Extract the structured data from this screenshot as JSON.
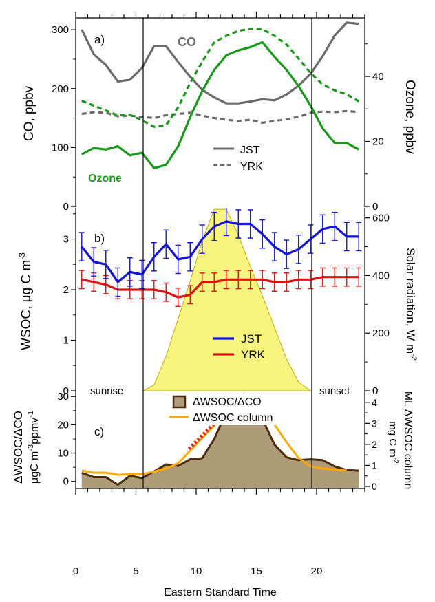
{
  "colors": {
    "green": "#169b16",
    "co_gray": "#6b6b6b",
    "yrk_gray": "#6b6b6b",
    "blue": "#1010e0",
    "red": "#e01010",
    "yellow_fill": "#f8f47e",
    "yellow_edge": "#b8b400",
    "brown_fill": "#ae9c78",
    "brown_line": "#4c2a06",
    "orange": "#ffaa00",
    "red_dash": "#e4201a"
  },
  "common": {
    "xlabel": "Eastern Standard Time",
    "xlim": [
      0,
      24
    ],
    "xticks": [
      "0",
      "5",
      "10",
      "15",
      "20"
    ],
    "sunrise_x": 5.6,
    "sunset_x": 19.6,
    "sunrise_label": "sunrise",
    "sunset_label": "sunset"
  },
  "chart_data": [
    {
      "type": "line",
      "panel_label": "a)",
      "ylabel": "CO, ppbv",
      "ylabel_right": "Ozone, ppbv",
      "ylim": [
        0,
        320
      ],
      "yticks": [
        "0",
        "100",
        "200",
        "300"
      ],
      "ylim_right": [
        0,
        58
      ],
      "yticks_right": [
        "0",
        "20",
        "40"
      ],
      "annotations": {
        "co": "CO",
        "ozone": "Ozone"
      },
      "legend": {
        "JST": "JST",
        "YRK": "YRK"
      },
      "x": [
        0.5,
        1.5,
        2.5,
        3.5,
        4.5,
        5.5,
        6.5,
        7.5,
        8.5,
        9.5,
        10.5,
        11.5,
        12.5,
        13.5,
        14.5,
        15.5,
        16.5,
        17.5,
        18.5,
        19.5,
        20.5,
        21.5,
        22.5,
        23.5
      ],
      "series": [
        {
          "name": "JST",
          "measure": "CO",
          "axis": "left",
          "values": [
            300,
            258,
            240,
            212,
            215,
            235,
            272,
            272,
            245,
            220,
            198,
            185,
            175,
            175,
            178,
            182,
            180,
            190,
            205,
            225,
            255,
            290,
            312,
            310
          ]
        },
        {
          "name": "YRK",
          "measure": "CO",
          "axis": "left",
          "values": [
            157,
            160,
            159,
            153,
            154,
            152,
            150,
            155,
            157,
            159,
            154,
            150,
            147,
            145,
            147,
            142,
            145,
            148,
            152,
            159,
            161,
            160,
            162,
            160
          ]
        },
        {
          "name": "JST",
          "measure": "Ozone",
          "axis": "right",
          "values": [
            16,
            18,
            17.5,
            18.5,
            15.7,
            16.5,
            11.8,
            12.8,
            18.5,
            27.5,
            35.5,
            42,
            46.5,
            48,
            49,
            50.5,
            46,
            42,
            37,
            31,
            24,
            19.5,
            19.5,
            17.5
          ]
        },
        {
          "name": "YRK",
          "measure": "Ozone",
          "axis": "right",
          "values": [
            32.5,
            31,
            29.5,
            28,
            28.2,
            26.5,
            24.5,
            25,
            30.5,
            38,
            44.5,
            50.5,
            52.5,
            54,
            54.7,
            54.5,
            52.5,
            49.8,
            45.5,
            41,
            37.5,
            35.7,
            34.5,
            32.3
          ]
        }
      ]
    },
    {
      "type": "line",
      "panel_label": "b)",
      "ylabel": "WSOC, μg C m",
      "ylabel_sup": "-3",
      "ylabel_right": "Solar radiation, W m",
      "ylabel_right_sup": "-2",
      "ylim": [
        0,
        3.62
      ],
      "yticks": [
        "0",
        "1",
        "2",
        "3"
      ],
      "ylim_right": [
        0,
        635
      ],
      "yticks_right": [
        "0",
        "200",
        "400",
        "600"
      ],
      "legend": {
        "JST": "JST",
        "YRK": "YRK"
      },
      "x": [
        0.5,
        1.5,
        2.5,
        3.5,
        4.5,
        5.5,
        6.5,
        7.5,
        8.5,
        9.5,
        10.5,
        11.5,
        12.5,
        13.5,
        14.5,
        15.5,
        16.5,
        17.5,
        18.5,
        19.5,
        20.5,
        21.5,
        22.5,
        23.5
      ],
      "series": [
        {
          "name": "JST",
          "values": [
            2.85,
            2.55,
            2.5,
            2.15,
            2.35,
            2.3,
            2.65,
            2.9,
            2.6,
            2.65,
            3.0,
            3.25,
            3.35,
            3.3,
            3.3,
            3.1,
            2.85,
            2.7,
            2.8,
            3.0,
            3.2,
            3.25,
            3.05,
            3.05
          ],
          "error": 0.28
        },
        {
          "name": "YRK",
          "values": [
            2.2,
            2.15,
            2.1,
            2.0,
            2.0,
            2.0,
            2.0,
            1.95,
            1.85,
            1.9,
            2.15,
            2.15,
            2.2,
            2.2,
            2.2,
            2.2,
            2.15,
            2.15,
            2.2,
            2.2,
            2.25,
            2.25,
            2.25,
            2.25
          ],
          "error": 0.18
        },
        {
          "name": "Solar radiation",
          "axis": "right",
          "x": [
            5.6,
            6.5,
            7.5,
            8.5,
            9.5,
            10.5,
            11.5,
            12.5,
            13.5,
            14.5,
            15.5,
            16.5,
            17.5,
            18.5,
            19.5
          ],
          "values": [
            0,
            20,
            120,
            250,
            380,
            520,
            630,
            630,
            540,
            430,
            330,
            220,
            110,
            30,
            0
          ]
        }
      ]
    },
    {
      "type": "area",
      "panel_label": "c)",
      "ylabel": "ΔWSOC/ΔCO",
      "ylabel2": "μgC m",
      "ylabel2_sup": "-3",
      "ylabel2_mid": "ppmv",
      "ylabel2_sup2": "-1",
      "ylabel_right": "ML ΔWSOC column",
      "ylabel_right2": "mg C m",
      "ylabel_right2_sup": "-2",
      "ylim": [
        -2.5,
        32
      ],
      "yticks": [
        "0",
        "10",
        "20",
        "30"
      ],
      "ylim_right": [
        -0.1,
        4.55
      ],
      "yticks_right": [
        "0",
        "1",
        "2",
        "3",
        "4"
      ],
      "legend": {
        "ratio": "ΔWSOC/ΔCO",
        "column": "ΔWSOC column"
      },
      "x": [
        0.5,
        1.5,
        2.5,
        3.5,
        4.5,
        5.5,
        6.5,
        7.5,
        8.5,
        9.5,
        10.5,
        11.5,
        12.5,
        13.5,
        14.5,
        15.5,
        16.5,
        17.5,
        18.5,
        19.5,
        20.5,
        21.5,
        22.5,
        23.5
      ],
      "series": [
        {
          "name": "ΔWSOC/ΔCO",
          "values": [
            3,
            1.5,
            1.5,
            -1.2,
            2,
            1.2,
            3.5,
            6,
            5.5,
            7.8,
            8.2,
            15,
            24.5,
            28.5,
            29.3,
            22,
            13,
            8.5,
            7.5,
            7.8,
            7.5,
            5.3,
            4,
            3.8
          ]
        },
        {
          "name": "ΔWSOC column",
          "axis": "right",
          "x": [
            0.5,
            1.5,
            2.5,
            3.5,
            4.5,
            5.5,
            6.5,
            7.5,
            8.5,
            9.5,
            10.5,
            11.5,
            12.5,
            13.5,
            14.5,
            15.5,
            16.5,
            17.5,
            18.5,
            19.5,
            20.5,
            21.5,
            22.5
          ],
          "values": [
            0.75,
            0.65,
            0.65,
            0.55,
            0.58,
            0.58,
            0.7,
            0.85,
            1.1,
            1.7,
            2.3,
            2.9,
            3.6,
            4.0,
            4.1,
            3.8,
            2.95,
            2.1,
            1.35,
            0.95,
            0.85,
            0.8,
            0.75
          ]
        },
        {
          "name": "trend",
          "style": "dotted",
          "x": [
            9.4,
            14.0
          ],
          "values": [
            11.5,
            31.2
          ]
        }
      ]
    }
  ]
}
